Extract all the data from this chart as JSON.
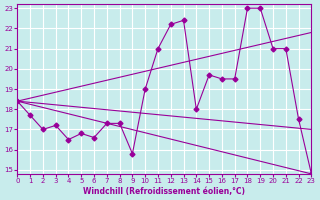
{
  "xlabel": "Windchill (Refroidissement éolien,°C)",
  "xlim": [
    0,
    23
  ],
  "ylim": [
    15,
    23
  ],
  "yticks": [
    15,
    16,
    17,
    18,
    19,
    20,
    21,
    22,
    23
  ],
  "xticks": [
    0,
    1,
    2,
    3,
    4,
    5,
    6,
    7,
    8,
    9,
    10,
    11,
    12,
    13,
    14,
    15,
    16,
    17,
    18,
    19,
    20,
    21,
    22,
    23
  ],
  "bg_color": "#c8ecec",
  "line_color": "#990099",
  "grid_color": "#ffffff",
  "series": [
    [
      0,
      18.4
    ],
    [
      1,
      17.7
    ],
    [
      2,
      17.0
    ],
    [
      3,
      17.2
    ],
    [
      4,
      16.5
    ],
    [
      5,
      16.8
    ],
    [
      6,
      16.6
    ],
    [
      7,
      17.3
    ],
    [
      8,
      17.3
    ],
    [
      9,
      15.8
    ],
    [
      10,
      19.0
    ],
    [
      11,
      21.0
    ],
    [
      12,
      22.2
    ],
    [
      13,
      22.4
    ],
    [
      14,
      18.0
    ],
    [
      15,
      19.7
    ],
    [
      16,
      19.5
    ],
    [
      17,
      19.5
    ],
    [
      18,
      23.0
    ],
    [
      19,
      23.0
    ],
    [
      20,
      21.0
    ],
    [
      21,
      21.0
    ],
    [
      22,
      17.5
    ],
    [
      23,
      14.8
    ]
  ],
  "line2": [
    [
      0,
      18.4
    ],
    [
      23,
      14.8
    ]
  ],
  "line3": [
    [
      0,
      18.4
    ],
    [
      23,
      21.8
    ]
  ],
  "line4": [
    [
      0,
      18.4
    ],
    [
      23,
      17.0
    ]
  ]
}
